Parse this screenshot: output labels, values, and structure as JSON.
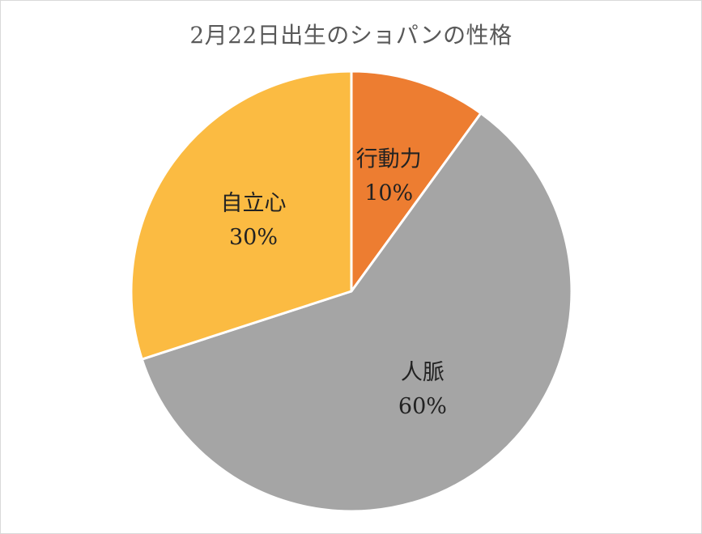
{
  "chart_data": {
    "type": "pie",
    "title": "2月22日出生のショパンの性格",
    "categories": [
      "行動力",
      "人脈",
      "自立心"
    ],
    "values": [
      10,
      60,
      30
    ],
    "value_labels": [
      "10%",
      "60%",
      "30%"
    ],
    "colors": [
      "#ed7d31",
      "#a5a5a5",
      "#fbbb42"
    ],
    "legend": "none",
    "start_angle_deg": 0,
    "direction": "clockwise"
  }
}
